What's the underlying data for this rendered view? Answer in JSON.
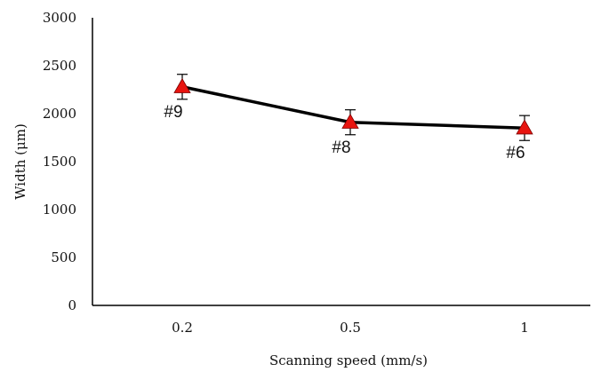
{
  "chart_data": {
    "type": "line",
    "title": "",
    "xlabel": "Scanning  speed (mm/s)",
    "ylabel": "Width (μm)",
    "categories": [
      "0.2",
      "0.5",
      "1"
    ],
    "ylim": [
      0,
      3000
    ],
    "yticks": [
      "0",
      "500",
      "1000",
      "1500",
      "2000",
      "2500",
      "3000"
    ],
    "grid": false,
    "legend": "none",
    "series": [
      {
        "values": [
          2280,
          1910,
          1850
        ],
        "error": [
          130,
          130,
          130
        ],
        "point_labels": [
          "#9",
          "#8",
          "#6"
        ],
        "line_color": "#000000",
        "marker_color": "#e8140f",
        "marker": "triangle"
      }
    ]
  }
}
